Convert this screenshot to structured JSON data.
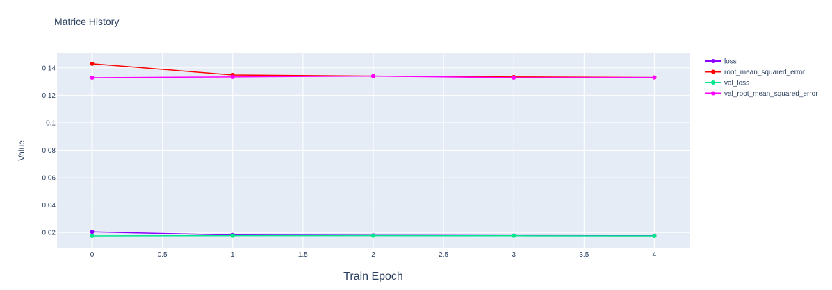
{
  "chart_data": {
    "type": "line",
    "title": "Matrice History",
    "xlabel": "Train Epoch",
    "ylabel": "Value",
    "xlim": [
      -0.25,
      4.25
    ],
    "ylim": [
      0.0085,
      0.151
    ],
    "x_ticks": [
      0,
      0.5,
      1,
      1.5,
      2,
      2.5,
      3,
      3.5,
      4
    ],
    "x_tick_labels": [
      "0",
      "0.5",
      "1",
      "1.5",
      "2",
      "2.5",
      "3",
      "3.5",
      "4"
    ],
    "y_ticks": [
      0.02,
      0.04,
      0.06,
      0.08,
      0.1,
      0.12,
      0.14
    ],
    "y_tick_labels": [
      "0.02",
      "0.04",
      "0.06",
      "0.08",
      "0.1",
      "0.12",
      "0.14"
    ],
    "grid": true,
    "legend_position": "top-right",
    "plot_bgcolor": "#E5ECF6",
    "x": [
      0,
      1,
      2,
      3,
      4
    ],
    "series": [
      {
        "name": "loss",
        "color": "#8B00FF",
        "values": [
          0.0205,
          0.0182,
          0.018,
          0.0178,
          0.0177
        ]
      },
      {
        "name": "root_mean_squared_error",
        "color": "#FF0000",
        "values": [
          0.143,
          0.1348,
          0.134,
          0.1334,
          0.133
        ]
      },
      {
        "name": "val_loss",
        "color": "#00E88C",
        "values": [
          0.0176,
          0.0178,
          0.0178,
          0.0177,
          0.0176
        ]
      },
      {
        "name": "val_root_mean_squared_error",
        "color": "#FF00FF",
        "values": [
          0.1328,
          0.1334,
          0.134,
          0.1328,
          0.133
        ]
      }
    ]
  }
}
